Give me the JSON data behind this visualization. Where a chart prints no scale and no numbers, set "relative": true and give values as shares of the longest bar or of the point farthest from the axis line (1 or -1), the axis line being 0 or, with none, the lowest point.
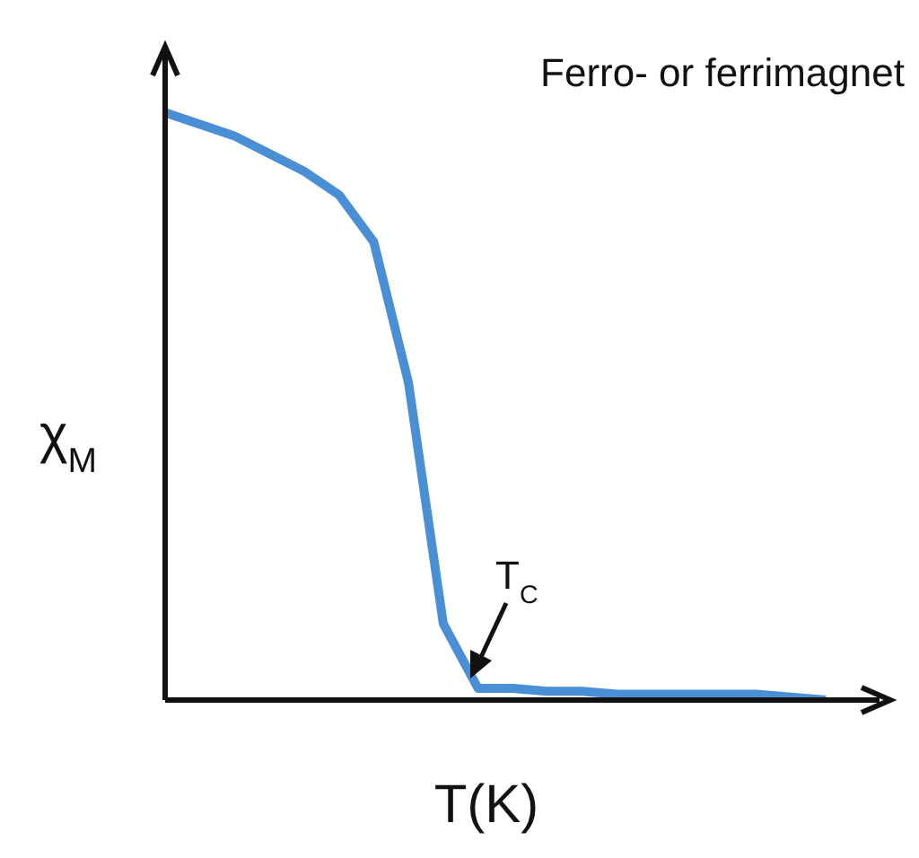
{
  "chart_data": {
    "type": "line",
    "title": "Ferro- or ferrimagnet",
    "xlabel": "T(K)",
    "ylabel": "χ$_{M}$",
    "relative": true,
    "tick_labels": false,
    "categories": [
      null,
      null,
      null,
      null,
      null,
      null,
      null,
      null,
      null,
      null,
      null,
      null,
      null,
      null,
      null,
      null,
      null,
      null,
      null,
      null
    ],
    "series": [
      {
        "color": "#4a8fd6",
        "values": [
          1,
          0.98,
          0.96,
          0.93,
          0.9,
          0.86,
          0.78,
          0.54,
          0.13,
          0.02,
          0.02,
          0.015,
          0.015,
          0.01,
          0.01,
          0.01,
          0.01,
          0.01,
          0.005,
          0
        ]
      }
    ],
    "annotations": [
      "T$_{C}$"
    ],
    "line_style": "solid"
  }
}
